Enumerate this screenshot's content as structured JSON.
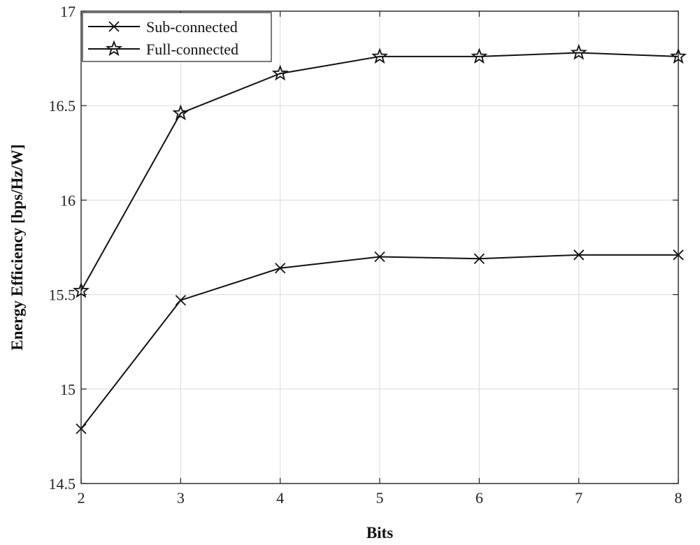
{
  "chart_data": {
    "type": "line",
    "xlabel": "Bits",
    "ylabel": "Energy Efficiency [bps/Hz/W]",
    "xlim": [
      2,
      8
    ],
    "ylim": [
      14.5,
      17
    ],
    "x_ticks": [
      2,
      3,
      4,
      5,
      6,
      7,
      8
    ],
    "y_ticks": [
      14.5,
      15,
      15.5,
      16,
      16.5,
      17
    ],
    "y_tick_labels": [
      "14.5",
      "15",
      "15.5",
      "16",
      "16.5",
      "17"
    ],
    "grid": true,
    "legend_position": "top-left",
    "x": [
      2,
      3,
      4,
      5,
      6,
      7,
      8
    ],
    "series": [
      {
        "name": "Sub-connected",
        "marker": "x",
        "color": "#111111",
        "values": [
          14.79,
          15.47,
          15.64,
          15.7,
          15.69,
          15.71,
          15.71
        ]
      },
      {
        "name": "Full-connected",
        "marker": "star",
        "color": "#111111",
        "values": [
          15.52,
          16.46,
          16.67,
          16.76,
          16.76,
          16.78,
          16.76
        ]
      }
    ]
  }
}
